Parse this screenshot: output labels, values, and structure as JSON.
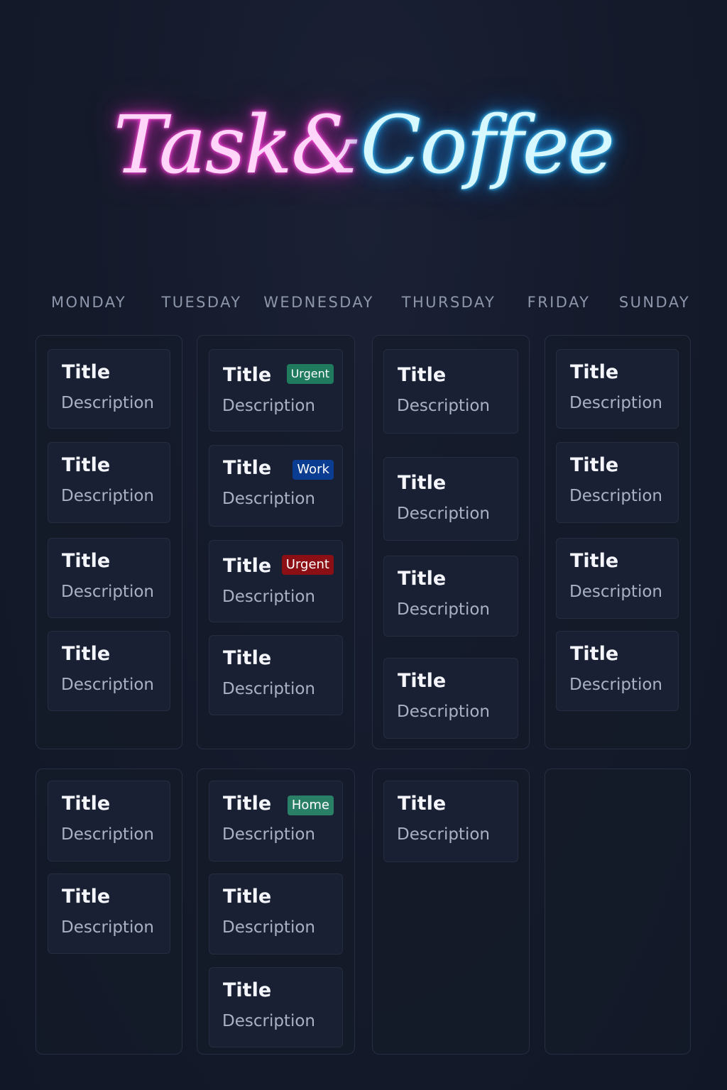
{
  "logo": {
    "part1": "Task&",
    "part2": "Coffee",
    "colors": {
      "part1": "#ff4fd8",
      "part2": "#3cc8ff"
    }
  },
  "days": [
    "MONDAY",
    "TUESDAY",
    "WEDNESDAY",
    "THURSDAY",
    "FRIDAY",
    "SUNDAY"
  ],
  "tag_colors": {
    "Urgent-green": "#1f7a5e",
    "Work": "#0a3d91",
    "Urgent-red": "#8b0f14",
    "Home": "#2a8066"
  },
  "board": {
    "row1": [
      {
        "cards": [
          {
            "title": "Title",
            "description": "Description"
          },
          {
            "title": "Title",
            "description": "Description"
          },
          {
            "title": "Title",
            "description": "Description"
          },
          {
            "title": "Title",
            "description": "Description"
          }
        ]
      },
      {
        "cards": [
          {
            "title": "Title",
            "description": "Description",
            "tag": "Urgent",
            "tag_color": "#1f7a5e"
          },
          {
            "title": "Title",
            "description": "Description",
            "tag": "Work",
            "tag_color": "#0a3d91"
          },
          {
            "title": "Title",
            "description": "Description",
            "tag": "Urgent",
            "tag_color": "#8b0f14"
          },
          {
            "title": "Title",
            "description": "Description"
          }
        ]
      },
      {
        "cards": [
          {
            "title": "Title",
            "description": "Description"
          },
          {
            "title": "Title",
            "description": "Description"
          },
          {
            "title": "Title",
            "description": "Description"
          },
          {
            "title": "Title",
            "description": "Description"
          }
        ]
      },
      {
        "cards": [
          {
            "title": "Title",
            "description": "Description"
          },
          {
            "title": "Title",
            "description": "Description"
          },
          {
            "title": "Title",
            "description": "Description"
          },
          {
            "title": "Title",
            "description": "Description"
          }
        ]
      }
    ],
    "row2": [
      {
        "cards": [
          {
            "title": "Title",
            "description": "Description"
          },
          {
            "title": "Title",
            "description": "Description"
          }
        ]
      },
      {
        "cards": [
          {
            "title": "Title",
            "description": "Description",
            "tag": "Home",
            "tag_color": "#2a8066"
          },
          {
            "title": "Title",
            "description": "Description"
          },
          {
            "title": "Title",
            "description": "Description"
          }
        ]
      },
      {
        "cards": [
          {
            "title": "Title",
            "description": "Description"
          }
        ]
      },
      {
        "cards": []
      }
    ]
  }
}
